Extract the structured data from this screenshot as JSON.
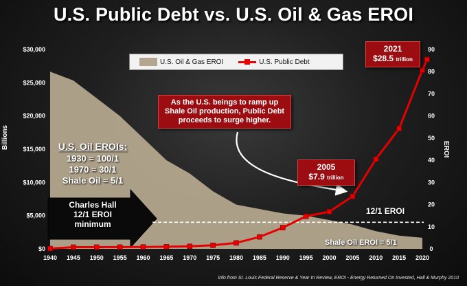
{
  "title": "U.S. Public Debt vs. U.S. Oil & Gas EROI",
  "source": "info from St. Louis Federal Reserve & Year In Review, EROI - Energy Returned On Invested, Hall & Murphy 2010",
  "chart_data": {
    "type": "line",
    "x": [
      1940,
      1945,
      1950,
      1955,
      1960,
      1965,
      1970,
      1975,
      1980,
      1985,
      1990,
      1995,
      2000,
      2005,
      2010,
      2015,
      2020
    ],
    "x_ticks": [
      "1940",
      "1945",
      "1950",
      "1955",
      "1960",
      "1965",
      "1970",
      "1975",
      "1980",
      "1985",
      "1990",
      "1995",
      "2000",
      "2005",
      "2010",
      "2015",
      "2020"
    ],
    "ylabel_left": "Billions",
    "ylabel_right": "EROI",
    "y_left_lim": [
      0,
      30000
    ],
    "y_left_ticks": [
      "$0",
      "$5,000",
      "$10,000",
      "$15,000",
      "$20,000",
      "$25,000",
      "$30,000"
    ],
    "y_right_lim": [
      0,
      90
    ],
    "y_right_ticks": [
      "0",
      "10",
      "20",
      "30",
      "40",
      "50",
      "60",
      "70",
      "80",
      "90"
    ],
    "series": [
      {
        "name": "U.S. Oil & Gas EROI",
        "type": "area",
        "color": "#b4a68e",
        "axis": "right",
        "x": [
          1940,
          1945,
          1950,
          1955,
          1960,
          1965,
          1970,
          1975,
          1980,
          1985,
          1990,
          1995,
          2000,
          2005,
          2010,
          2015,
          2020
        ],
        "values": [
          80,
          76,
          68,
          60,
          50,
          40,
          34,
          26,
          20,
          18,
          16,
          15,
          13,
          11,
          8,
          6,
          5
        ]
      },
      {
        "name": "U.S. Public Debt",
        "type": "line",
        "color": "#e60000",
        "axis": "left",
        "x": [
          1940,
          1945,
          1950,
          1955,
          1960,
          1965,
          1970,
          1975,
          1980,
          1985,
          1990,
          1995,
          2000,
          2005,
          2010,
          2015,
          2020,
          2021
        ],
        "values": [
          50,
          260,
          257,
          274,
          290,
          320,
          380,
          540,
          900,
          1800,
          3200,
          4900,
          5600,
          7900,
          13500,
          18100,
          26900,
          28500
        ]
      }
    ],
    "reference_line": {
      "label": "12/1 EROI",
      "value": 12,
      "axis": "right",
      "from_x": 1962
    }
  },
  "legend": {
    "eroi_label": "U.S. Oil & Gas EROI",
    "debt_label": "U.S. Public Debt"
  },
  "annotations": {
    "note": "As the U.S. beings to ramp up Shale Oil production, Public Debt proceeds to surge higher.",
    "c2005_year": "2005",
    "c2005_value": "$7.9",
    "c2005_unit": "trillion",
    "c2021_year": "2021",
    "c2021_value": "$28.5",
    "c2021_unit": "trillion",
    "eroi_header": "U.S. Oil EROIs:",
    "eroi_line1": "1930 = 100/1",
    "eroi_line2": "1970 = 30/1",
    "eroi_line3": "Shale Oil = 5/1",
    "hall_line1": "Charles Hall",
    "hall_line2": "12/1 EROI",
    "hall_line3": "minimum",
    "ref_label": "12/1 EROI",
    "shale_label": "Shale Oil EROI = 5/1"
  },
  "colors": {
    "debt": "#e60000",
    "eroi": "#b4a68e",
    "callout": "#9b0d10"
  }
}
